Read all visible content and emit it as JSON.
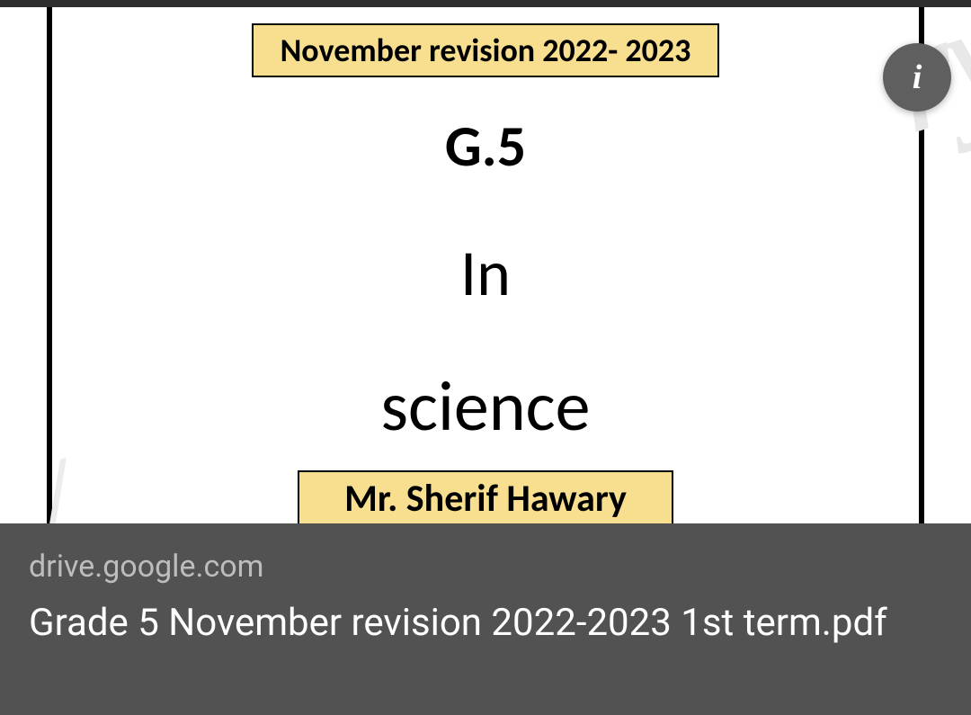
{
  "preview": {
    "title_banner": "November revision 2022- 2023",
    "grade": "G.5",
    "in_word": "In",
    "subject": "science",
    "author_banner": "Mr. Sherif Hawary",
    "title_banner_bg": "#f8de8f",
    "title_banner_border": "#000000",
    "page_bg": "#ffffff",
    "page_border_color": "#000000",
    "watermark_color": "#e8e8e8"
  },
  "info_button": {
    "icon_glyph": "i",
    "bg": "#5f5f5f",
    "fg": "#ffffff"
  },
  "caption": {
    "source": "drive.google.com",
    "filename": "Grade 5 November revision 2022-2023 1st term.pdf",
    "bg": "#525252",
    "source_color": "#bdbdbd",
    "filename_color": "#ffffff"
  }
}
